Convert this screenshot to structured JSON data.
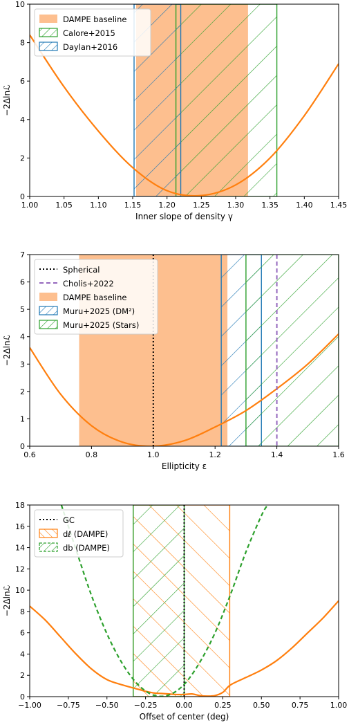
{
  "chart_data": [
    {
      "type": "line",
      "xlabel": "Inner slope of density γ",
      "ylabel": "−2Δlnℒ",
      "xlim": [
        1.0,
        1.45
      ],
      "ylim": [
        0,
        10
      ],
      "x_ticks": [
        "1.00",
        "1.05",
        "1.10",
        "1.15",
        "1.20",
        "1.25",
        "1.30",
        "1.35",
        "1.40",
        "1.45"
      ],
      "y_ticks": [
        "0",
        "2",
        "4",
        "6",
        "8",
        "10"
      ],
      "legend_position": "top-left",
      "legend": [
        {
          "label": "DAMPE baseline",
          "style": "fill",
          "color": "#fdbf8f"
        },
        {
          "label": "Calore+2015",
          "style": "hatch-down",
          "color": "#2ca02c"
        },
        {
          "label": "Daylan+2016",
          "style": "hatch-down",
          "color": "#1f77b4"
        }
      ],
      "curve": {
        "color": "#ff7f0e",
        "x": [
          1.0,
          1.05,
          1.1,
          1.15,
          1.2,
          1.25,
          1.3,
          1.35,
          1.4,
          1.45
        ],
        "y": [
          8.4,
          5.7,
          3.4,
          1.5,
          0.3,
          0.05,
          0.6,
          2.0,
          4.2,
          6.9
        ]
      },
      "bands": [
        {
          "name": "DAMPE baseline",
          "style": "fill",
          "color": "#fdbf8f",
          "x0": 1.155,
          "x1": 1.318
        },
        {
          "name": "Calore+2015",
          "style": "hatch-down",
          "color": "#2ca02c",
          "x0": 1.213,
          "x1": 1.36
        },
        {
          "name": "Daylan+2016",
          "style": "hatch-down",
          "color": "#1f77b4",
          "x0": 1.152,
          "x1": 1.22
        }
      ],
      "vlines": []
    },
    {
      "type": "line",
      "xlabel": "Ellipticity ε",
      "ylabel": "−2Δlnℒ",
      "xlim": [
        0.6,
        1.6
      ],
      "ylim": [
        0,
        7
      ],
      "x_ticks": [
        "0.6",
        "0.8",
        "1.0",
        "1.2",
        "1.4",
        "1.6"
      ],
      "y_ticks": [
        "0",
        "1",
        "2",
        "3",
        "4",
        "5",
        "6",
        "7"
      ],
      "legend_position": "top-left",
      "legend": [
        {
          "label": "Spherical",
          "style": "dotted",
          "color": "#000000"
        },
        {
          "label": "Cholis+2022",
          "style": "dashed",
          "color": "#9467bd"
        },
        {
          "label": "DAMPE baseline",
          "style": "fill",
          "color": "#fdbf8f"
        },
        {
          "label": "Muru+2025 (DM²)",
          "style": "hatch-down",
          "color": "#1f77b4"
        },
        {
          "label": "Muru+2025 (Stars)",
          "style": "hatch-down",
          "color": "#2ca02c"
        }
      ],
      "curve": {
        "color": "#ff7f0e",
        "x": [
          0.6,
          0.7,
          0.8,
          0.9,
          1.0,
          1.1,
          1.2,
          1.3,
          1.4,
          1.5,
          1.6
        ],
        "y": [
          3.6,
          1.9,
          0.75,
          0.15,
          0.0,
          0.2,
          0.7,
          1.3,
          2.1,
          3.0,
          4.1
        ]
      },
      "bands": [
        {
          "name": "DAMPE baseline",
          "style": "fill",
          "color": "#fdbf8f",
          "x0": 0.76,
          "x1": 1.24
        },
        {
          "name": "Muru+2025 (DM2)",
          "style": "hatch-down",
          "color": "#1f77b4",
          "x0": 1.22,
          "x1": 1.35
        },
        {
          "name": "Muru+2025 (Stars)",
          "style": "hatch-down",
          "color": "#2ca02c",
          "x0": 1.3,
          "x1": 1.6
        }
      ],
      "vlines": [
        {
          "name": "Spherical",
          "x": 1.0,
          "style": "dotted",
          "color": "#000000"
        },
        {
          "name": "Cholis+2022",
          "x": 1.4,
          "style": "dashed",
          "color": "#9467bd"
        }
      ]
    },
    {
      "type": "line",
      "xlabel": "Offset of center (deg)",
      "ylabel": "−2Δlnℒ",
      "xlim": [
        -1.0,
        1.0
      ],
      "ylim": [
        0,
        18
      ],
      "x_ticks": [
        "−1.00",
        "−0.75",
        "−0.50",
        "−0.25",
        "0.00",
        "0.25",
        "0.50",
        "0.75",
        "1.00"
      ],
      "y_ticks": [
        "0",
        "2",
        "4",
        "6",
        "8",
        "10",
        "12",
        "14",
        "16",
        "18"
      ],
      "legend_position": "top-left",
      "legend": [
        {
          "label": "GC",
          "style": "dotted",
          "color": "#000000"
        },
        {
          "label": "dℓ (DAMPE)",
          "style": "hatch-up",
          "color": "#ff7f0e"
        },
        {
          "label": "db (DAMPE)",
          "style": "hatch-down-dashed",
          "color": "#2ca02c"
        }
      ],
      "curves": [
        {
          "name": "dℓ (DAMPE)",
          "color": "#ff7f0e",
          "dash": "",
          "x": [
            -1.0,
            -0.9,
            -0.8,
            -0.7,
            -0.6,
            -0.5,
            -0.4,
            -0.3,
            -0.25,
            -0.2,
            -0.15,
            -0.1,
            -0.05,
            0.0,
            0.05,
            0.1,
            0.15,
            0.2,
            0.25,
            0.3,
            0.4,
            0.5,
            0.6,
            0.7,
            0.8,
            0.9,
            1.0
          ],
          "y": [
            8.5,
            7.2,
            5.6,
            4.0,
            2.6,
            1.6,
            1.1,
            0.7,
            0.5,
            0.35,
            0.3,
            0.25,
            0.2,
            0.2,
            0.25,
            0.1,
            0.05,
            0.1,
            0.4,
            1.1,
            1.8,
            2.5,
            3.4,
            4.6,
            6.0,
            7.4,
            9.0
          ]
        },
        {
          "name": "db (DAMPE)",
          "color": "#2ca02c",
          "dash": "6,4",
          "x": [
            -0.795,
            -0.7,
            -0.6,
            -0.5,
            -0.4,
            -0.3,
            -0.2,
            -0.1,
            0.0,
            0.1,
            0.2,
            0.3,
            0.4,
            0.5,
            0.54
          ],
          "y": [
            18,
            13.8,
            9.5,
            5.9,
            3.1,
            1.15,
            0.15,
            0.15,
            1.15,
            3.2,
            6.0,
            9.6,
            13.6,
            17.0,
            18
          ]
        }
      ],
      "bands": [
        {
          "name": "dℓ (DAMPE)",
          "style": "hatch-up",
          "color": "#ff7f0e",
          "x0": -0.33,
          "x1": 0.295
        },
        {
          "name": "db (DAMPE)",
          "style": "hatch-down",
          "color": "#2ca02c",
          "x0": -0.33,
          "x1": 0.0
        }
      ],
      "vlines": [
        {
          "name": "GC",
          "x": 0.0,
          "style": "dotted",
          "color": "#000000"
        }
      ]
    }
  ]
}
